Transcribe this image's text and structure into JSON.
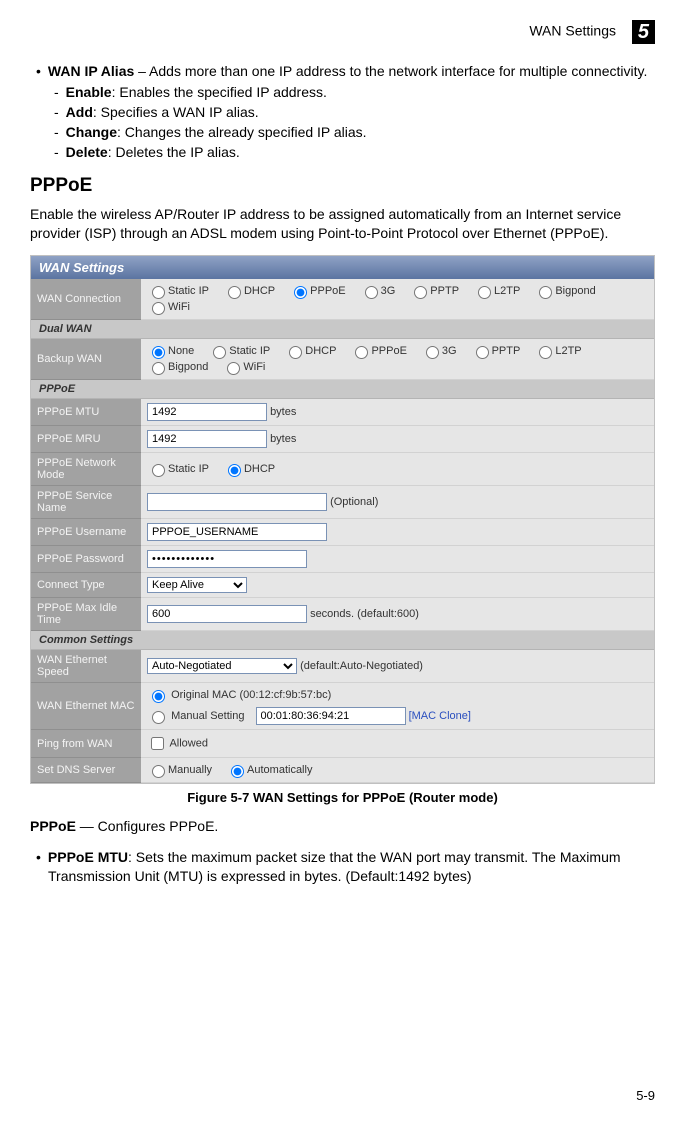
{
  "header": {
    "title": "WAN Settings",
    "chapter": "5"
  },
  "intro": {
    "wanIpAlias": {
      "term": "WAN IP Alias",
      "desc": " – Adds more than one IP address to the network interface for multiple connectivity.",
      "enable": {
        "term": "Enable",
        "desc": ": Enables the specified IP address."
      },
      "add": {
        "term": "Add",
        "desc": ": Specifies a WAN IP alias."
      },
      "change": {
        "term": "Change",
        "desc": ": Changes the already specified IP alias."
      },
      "delete": {
        "term": "Delete",
        "desc": ": Deletes the IP alias."
      }
    },
    "pppoeHeading": "PPPoE",
    "pppoeBody": "Enable the wireless AP/Router IP address to be assigned automatically from an Internet service provider (ISP) through an ADSL modem using Point-to-Point Protocol over Ethernet (PPPoE)."
  },
  "panel": {
    "title": "WAN Settings",
    "wanConnection": {
      "label": "WAN Connection",
      "options": [
        "Static IP",
        "DHCP",
        "PPPoE",
        "3G",
        "PPTP",
        "L2TP",
        "Bigpond",
        "WiFi"
      ],
      "selected": "PPPoE"
    },
    "dualWanHdr": "Dual WAN",
    "backupWan": {
      "label": "Backup WAN",
      "options": [
        "None",
        "Static IP",
        "DHCP",
        "PPPoE",
        "3G",
        "PPTP",
        "L2TP",
        "Bigpond",
        "WiFi"
      ],
      "selected": "None"
    },
    "pppoeHdr": "PPPoE",
    "mtu": {
      "label": "PPPoE MTU",
      "value": "1492",
      "suffix": "bytes"
    },
    "mru": {
      "label": "PPPoE MRU",
      "value": "1492",
      "suffix": "bytes"
    },
    "netmode": {
      "label": "PPPoE Network Mode",
      "options": [
        "Static IP",
        "DHCP"
      ],
      "selected": "DHCP"
    },
    "svcname": {
      "label": "PPPoE Service Name",
      "value": "",
      "suffix": "(Optional)"
    },
    "username": {
      "label": "PPPoE Username",
      "value": "PPPOE_USERNAME"
    },
    "password": {
      "label": "PPPoE Password",
      "value": "•••••••••••••"
    },
    "connectType": {
      "label": "Connect Type",
      "value": "Keep Alive"
    },
    "maxIdle": {
      "label": "PPPoE Max Idle Time",
      "value": "600",
      "suffix": "seconds. (default:600)"
    },
    "commonHdr": "Common Settings",
    "ethSpeed": {
      "label": "WAN Ethernet Speed",
      "value": "Auto-Negotiated",
      "suffix": "(default:Auto-Negotiated)"
    },
    "ethMac": {
      "label": "WAN Ethernet MAC",
      "origLabel": "Original MAC (00:12:cf:9b:57:bc)",
      "manualLabel": "Manual Setting",
      "manualValue": "00:01:80:36:94:21",
      "cloneLabel": "[MAC Clone]",
      "selected": "orig"
    },
    "ping": {
      "label": "Ping from WAN",
      "chkLabel": "Allowed",
      "checked": false
    },
    "dns": {
      "label": "Set DNS Server",
      "options": [
        "Manually",
        "Automatically"
      ],
      "selected": "Automatically"
    }
  },
  "figcap": "Figure 5-7  WAN Settings for PPPoE (Router mode)",
  "after": {
    "lead": {
      "term": "PPPoE",
      "desc": " — Configures PPPoE."
    },
    "mtu": {
      "term": "PPPoE MTU",
      "desc": ": Sets the maximum packet size that the WAN port may transmit. The Maximum Transmission Unit (MTU) is expressed in bytes. (Default:1492 bytes)"
    }
  },
  "pagenum": "5-9"
}
